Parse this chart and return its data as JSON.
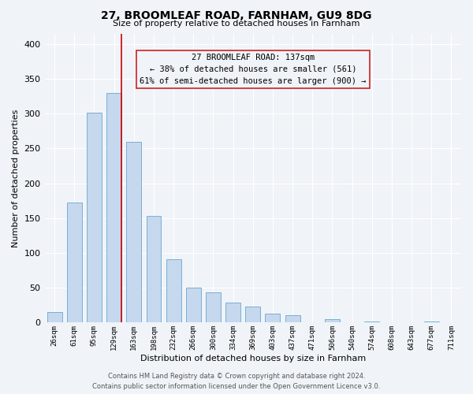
{
  "title": "27, BROOMLEAF ROAD, FARNHAM, GU9 8DG",
  "subtitle": "Size of property relative to detached houses in Farnham",
  "xlabel": "Distribution of detached houses by size in Farnham",
  "ylabel": "Number of detached properties",
  "footer_line1": "Contains HM Land Registry data © Crown copyright and database right 2024.",
  "footer_line2": "Contains public sector information licensed under the Open Government Licence v3.0.",
  "bin_labels": [
    "26sqm",
    "61sqm",
    "95sqm",
    "129sqm",
    "163sqm",
    "198sqm",
    "232sqm",
    "266sqm",
    "300sqm",
    "334sqm",
    "369sqm",
    "403sqm",
    "437sqm",
    "471sqm",
    "506sqm",
    "540sqm",
    "574sqm",
    "608sqm",
    "643sqm",
    "677sqm",
    "711sqm"
  ],
  "bar_values": [
    15,
    172,
    301,
    330,
    259,
    153,
    91,
    50,
    43,
    29,
    23,
    13,
    11,
    0,
    5,
    0,
    2,
    0,
    0,
    2,
    1
  ],
  "bar_color": "#c5d8ee",
  "bar_edge_color": "#7aafd4",
  "vline_x_index": 3,
  "vline_color": "#cc0000",
  "ylim": [
    0,
    415
  ],
  "yticks": [
    0,
    50,
    100,
    150,
    200,
    250,
    300,
    350,
    400
  ],
  "annotation_title": "27 BROOMLEAF ROAD: 137sqm",
  "annotation_line1": "← 38% of detached houses are smaller (561)",
  "annotation_line2": "61% of semi-detached houses are larger (900) →",
  "background_color": "#f0f4f8",
  "grid_color": "#ffffff",
  "bar_width": 0.75
}
